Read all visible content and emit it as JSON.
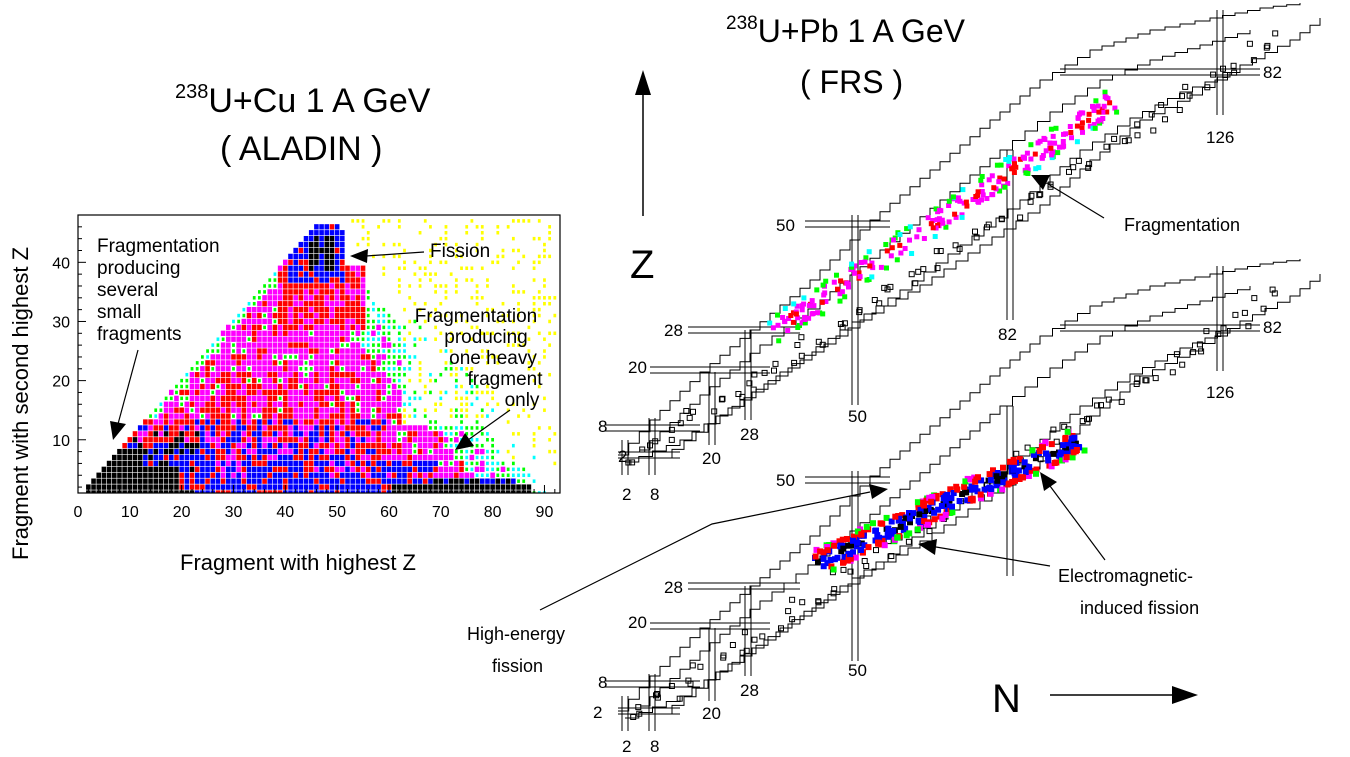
{
  "left_panel": {
    "title_line1_super": "238",
    "title_line1_rest": "U+Cu 1 A GeV",
    "title_line2": "( ALADIN )",
    "xlabel": "Fragment with highest Z",
    "ylabel": "Fragment with second highest Z",
    "xticks": [
      "0",
      "10",
      "20",
      "30",
      "40",
      "50",
      "60",
      "70",
      "80",
      "90"
    ],
    "yticks": [
      "10",
      "20",
      "30",
      "40"
    ],
    "annotations": {
      "fission": "Fission",
      "frag_small": [
        "Fragmentation",
        "producing",
        "several",
        "small",
        "fragments"
      ],
      "frag_heavy": [
        "Fragmentation",
        "producing",
        "one heavy",
        "fragment",
        "only"
      ]
    }
  },
  "right_panel": {
    "title_line1_super": "238",
    "title_line1_rest": "U+Pb 1 A GeV",
    "title_line2": "( FRS )",
    "z_axis_label": "Z",
    "n_axis_label": "N",
    "upper_chart": {
      "z_magic": [
        "2",
        "8",
        "20",
        "28",
        "50",
        "82"
      ],
      "n_magic": [
        "2",
        "8",
        "20",
        "28",
        "50",
        "82",
        "126"
      ],
      "label_fragmentation": "Fragmentation"
    },
    "lower_chart": {
      "z_magic": [
        "2",
        "8",
        "20",
        "28",
        "50",
        "82"
      ],
      "n_magic": [
        "2",
        "8",
        "20",
        "28",
        "50",
        "126"
      ],
      "label_em_fission": [
        "Electromagnetic-",
        "induced fission"
      ],
      "label_he_fission": [
        "High-energy",
        "fission"
      ]
    }
  },
  "chart_data": {
    "type": "heatmap",
    "title": "238U+Cu 1 A GeV ( ALADIN )",
    "xlabel": "Fragment with highest Z",
    "ylabel": "Fragment with second highest Z",
    "xlim": [
      0,
      93
    ],
    "ylim": [
      1,
      48
    ],
    "colors": {
      "level1": "#ffff00",
      "level2": "#00ffff",
      "level3": "#00ff00",
      "level4": "#ff00ff",
      "level5": "#ff0000",
      "level6": "#0000ff",
      "level7": "#000000"
    }
  }
}
